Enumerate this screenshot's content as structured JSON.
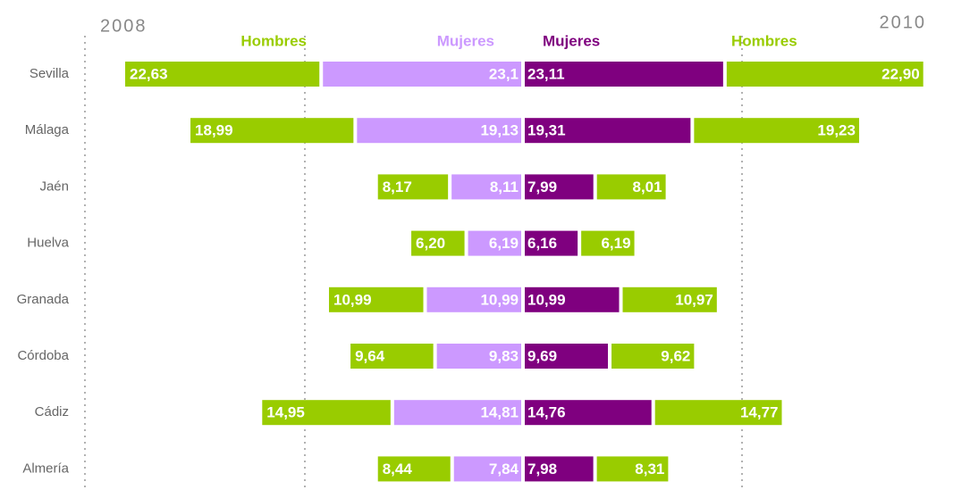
{
  "chart_data": {
    "type": "butterfly_bar",
    "left_title": "2008",
    "right_title": "2010",
    "categories": [
      "Sevilla",
      "Málaga",
      "Jaén",
      "Huelva",
      "Granada",
      "Córdoba",
      "Cádiz",
      "Almería"
    ],
    "series": [
      {
        "name": "Mujeres",
        "side": "left",
        "color": "#cc99ff",
        "values": [
          23.1,
          19.13,
          8.11,
          6.19,
          10.99,
          9.83,
          14.81,
          7.84
        ],
        "value_labels": [
          "23,1",
          "19,13",
          "8,11",
          "6,19",
          "10,99",
          "9,83",
          "14,81",
          "7,84"
        ]
      },
      {
        "name": "Hombres",
        "side": "left",
        "color": "#99cc00",
        "values": [
          22.63,
          18.99,
          8.17,
          6.2,
          10.99,
          9.64,
          14.95,
          8.44
        ],
        "value_labels": [
          "22,63",
          "18,99",
          "8,17",
          "6,20",
          "10,99",
          "9,64",
          "14,95",
          "8,44"
        ]
      },
      {
        "name": "Mujeres",
        "side": "right",
        "color": "#7f007f",
        "values": [
          23.11,
          19.31,
          7.99,
          6.16,
          10.99,
          9.69,
          14.76,
          7.98
        ],
        "value_labels": [
          "23,11",
          "19,31",
          "7,99",
          "6,16",
          "10,99",
          "9,69",
          "14,76",
          "7,98"
        ]
      },
      {
        "name": "Hombres",
        "side": "right",
        "color": "#99cc00",
        "values": [
          22.9,
          19.23,
          8.01,
          6.19,
          10.97,
          9.62,
          14.77,
          8.31
        ],
        "value_labels": [
          "22,90",
          "19,23",
          "8,01",
          "6,19",
          "10,97",
          "9,62",
          "14,77",
          "8,31"
        ]
      }
    ]
  }
}
